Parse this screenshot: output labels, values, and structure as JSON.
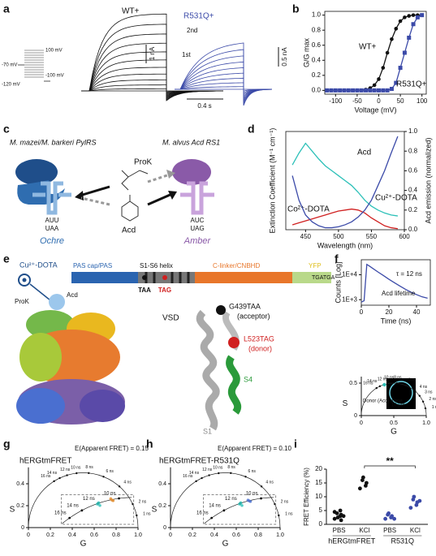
{
  "panels": [
    "a",
    "b",
    "c",
    "d",
    "e",
    "f",
    "g",
    "h",
    "i"
  ],
  "panel_a": {
    "wt_label": "WT+",
    "mut_label": "R531Q+",
    "second": "2nd",
    "first": "1st",
    "scale_wt": "1 nA",
    "scale_mut": "0.5 nA",
    "scale_time": "0.4 s",
    "protocol": [
      "100 mV",
      "-70 mV",
      "-100 mV",
      "-120 mV"
    ]
  },
  "panel_c": {
    "pylrs": "M. mazei/M. barkeri PylRS",
    "acdrs": "M. alvus Acd RS1",
    "prok": "ProK",
    "acd": "Acd",
    "left_anticodon": "AUU",
    "left_codon": "UAA",
    "right_anticodon": "AUC",
    "right_codon": "UAG",
    "left_name": "Ochre",
    "right_name": "Amber"
  },
  "panel_e": {
    "cu": "Cu²⁺-DOTA",
    "prok": "ProK",
    "acd": "Acd",
    "domains": [
      "PAS cap/PAS",
      "S1-S6 helix",
      "C-linker/CNBHD",
      "YFP"
    ],
    "codons": [
      "TAA",
      "TAG",
      "TGATGA"
    ],
    "vsd": "VSD",
    "acceptor": [
      "G439TAA",
      "(acceptor)"
    ],
    "donor": [
      "L523TAG",
      "(donor)"
    ],
    "s4": "S4",
    "s1": "S1"
  },
  "chart_data": [
    {
      "type": "line",
      "xlabel": "Voltage (mV)",
      "ylabel": "G/G max",
      "xlim": [
        -125,
        110
      ],
      "xticks": [
        -100,
        -50,
        0,
        50,
        100
      ],
      "ylim": [
        -0.05,
        1.05
      ],
      "yticks": [
        {
          "value": 0,
          "label": "0.0"
        },
        {
          "value": 0.2,
          "label": "0.2"
        },
        {
          "value": 0.4,
          "label": "0.4"
        },
        {
          "value": 0.6,
          "label": "0.6"
        },
        {
          "value": 0.8,
          "label": "0.8"
        },
        {
          "value": 1,
          "label": "1.0"
        }
      ],
      "x": [
        -120,
        -110,
        -100,
        -90,
        -80,
        -70,
        -60,
        -50,
        -40,
        -30,
        -20,
        -10,
        0,
        10,
        20,
        30,
        40,
        50,
        60,
        70,
        80,
        90,
        100
      ],
      "series": [
        {
          "name": "WT+",
          "color": "#111111",
          "marker": "circle",
          "values": [
            0,
            0,
            0,
            0,
            0,
            0,
            0,
            0,
            0,
            0.01,
            0.03,
            0.07,
            0.15,
            0.3,
            0.5,
            0.68,
            0.82,
            0.92,
            0.97,
            0.99,
            1,
            1,
            1
          ]
        },
        {
          "name": "R531Q+",
          "color": "#3b4aa8",
          "marker": "square",
          "values": [
            0,
            0,
            0,
            0,
            0,
            0,
            0,
            0,
            0,
            0,
            0,
            0,
            0,
            0,
            0,
            0.02,
            0.1,
            0.3,
            0.5,
            0.7,
            0.88,
            0.97,
            1
          ]
        }
      ]
    },
    {
      "type": "line",
      "xlabel": "Wavelength (nm)",
      "ylabel": "Extinction Coefficient (M⁻¹ cm⁻¹)",
      "y2label": "Acd emission (normalized)",
      "xlim": [
        420,
        600
      ],
      "xticks": [
        450,
        500,
        550,
        600
      ],
      "y2lim": [
        0,
        1
      ],
      "y2ticks": [
        {
          "value": 0,
          "label": "0.0"
        },
        {
          "value": 0.2,
          "label": "0.2"
        },
        {
          "value": 0.4,
          "label": "0.4"
        },
        {
          "value": 0.6,
          "label": "0.6"
        },
        {
          "value": 0.8,
          "label": "0.8"
        },
        {
          "value": 1,
          "label": "1.0"
        }
      ],
      "x": [
        430,
        440,
        450,
        460,
        470,
        480,
        490,
        500,
        510,
        520,
        530,
        540,
        550,
        560,
        570,
        580,
        590
      ],
      "series": [
        {
          "name": "Acd",
          "color": "#2cc0b8",
          "axis": "y2",
          "values": [
            0.66,
            0.78,
            0.88,
            0.8,
            0.72,
            0.65,
            0.6,
            0.55,
            0.5,
            0.45,
            0.38,
            0.3,
            0.24,
            0.2,
            0.17,
            0.15,
            0.14
          ]
        },
        {
          "name": "Co²⁺-DOTA",
          "color": "#d02020",
          "axis": "y2",
          "values": [
            0.05,
            0.07,
            0.09,
            0.11,
            0.13,
            0.15,
            0.17,
            0.19,
            0.2,
            0.21,
            0.2,
            0.17,
            0.12,
            0.08,
            0.04,
            0.02,
            0.01
          ]
        },
        {
          "name": "Cu²⁺-DOTA",
          "color": "#3b4aa8",
          "axis": "y2",
          "values": [
            0.55,
            0.3,
            0.15,
            0.08,
            0.04,
            0.02,
            0.02,
            0.03,
            0.05,
            0.08,
            0.13,
            0.2,
            0.3,
            0.45,
            0.6,
            0.78,
            0.95
          ]
        }
      ]
    },
    {
      "type": "line",
      "log_y": true,
      "xlabel": "Time (ns)",
      "ylabel": "Counts [Log]",
      "xlim": [
        0,
        50
      ],
      "xticks": [
        0,
        20,
        40
      ],
      "ylim": [
        600,
        40000
      ],
      "yticks": [
        {
          "value": 1000,
          "label": "1E+3"
        },
        {
          "value": 10000,
          "label": "1E+4"
        }
      ],
      "annotations": [
        "τ = 12 ns",
        "Acd lifetime"
      ],
      "x": [
        0,
        2,
        4,
        6,
        8,
        12,
        16,
        20,
        24,
        28,
        32,
        36,
        40,
        44,
        48
      ],
      "series": [
        {
          "color": "#3b4aa8",
          "values": [
            800,
            900,
            26000,
            22000,
            18500,
            13000,
            9300,
            6600,
            4800,
            3500,
            2600,
            2000,
            1600,
            1300,
            1150
          ]
        }
      ]
    },
    {
      "type": "phasor",
      "xlabel": "G",
      "ylabel": "S",
      "xlim": [
        0,
        1
      ],
      "xticks": [
        0,
        0.5,
        {
          "value": 1,
          "label": "1.0"
        }
      ],
      "ylim": [
        0,
        0.6
      ],
      "yticks": [
        0,
        0.5
      ],
      "lifetimes": [
        {
          "value": 1,
          "label": "1 ns"
        },
        {
          "value": 2,
          "label": "2 ns"
        },
        {
          "value": 3,
          "label": "3 ns"
        },
        {
          "value": 4,
          "label": "4 ns"
        },
        {
          "value": 6,
          "label": "6 ns"
        },
        {
          "value": 8,
          "label": "8 ns"
        },
        {
          "value": 10,
          "label": "10 ns"
        },
        {
          "value": 12,
          "label": "12 ns"
        },
        {
          "value": 14,
          "label": "14 ns"
        },
        {
          "value": 16,
          "label": "16 ns"
        }
      ],
      "annotations": [
        "Donor (Acd) alone",
        "10 μm"
      ],
      "series": [
        {
          "color": "#2cc0b8",
          "x": [
            0.35,
            0.355,
            0.36
          ],
          "values": [
            0.475,
            0.48,
            0.47
          ]
        }
      ]
    },
    {
      "type": "phasor",
      "title": "hERGtmFRET",
      "subtitle": "E(Apparent FRET) = 0.15",
      "xlabel": "G",
      "ylabel": "S",
      "xlim": [
        0,
        1
      ],
      "xticks": [
        0,
        0.2,
        0.4,
        0.6,
        0.8,
        {
          "value": 1,
          "label": "1.0"
        }
      ],
      "ylim": [
        0,
        0.55
      ],
      "yticks": [
        0,
        0.2,
        0.4
      ],
      "lifetimes": [
        {
          "value": 1,
          "label": "1 ns"
        },
        {
          "value": 2,
          "label": "2 ns"
        },
        {
          "value": 4,
          "label": "4 ns"
        },
        {
          "value": 6,
          "label": "6 ns"
        },
        {
          "value": 8,
          "label": "8 ns"
        },
        {
          "value": 10,
          "label": "10 ns"
        },
        {
          "value": 12,
          "label": "12 ns"
        },
        {
          "value": 14,
          "label": "14 ns"
        },
        {
          "value": 16,
          "label": "16 ns"
        }
      ],
      "inset_lifetimes": [
        {
          "value": 10,
          "label": "10 ns"
        },
        {
          "value": 12,
          "label": "12 ns"
        },
        {
          "value": 14,
          "label": "14 ns"
        },
        {
          "value": 16,
          "label": "16 ns"
        }
      ],
      "series": [
        {
          "color": "#2cc0b8",
          "x": [
            0.35,
            0.355,
            0.36
          ],
          "values": [
            0.475,
            0.48,
            0.47
          ]
        },
        {
          "color": "#e08a2a",
          "x": [
            0.41,
            0.415,
            0.405
          ],
          "values": [
            0.49,
            0.488,
            0.495
          ]
        }
      ]
    },
    {
      "type": "phasor",
      "title": "hERGtmFRET-R531Q",
      "subtitle": "E(Apparent FRET) = 0.10",
      "xlabel": "G",
      "ylabel": "S",
      "xlim": [
        0,
        1
      ],
      "xticks": [
        0,
        0.2,
        0.4,
        0.6,
        0.8,
        {
          "value": 1,
          "label": "1.0"
        }
      ],
      "ylim": [
        0,
        0.55
      ],
      "yticks": [
        0,
        0.2,
        0.4
      ],
      "lifetimes": [
        {
          "value": 1,
          "label": "1 ns"
        },
        {
          "value": 2,
          "label": "2 ns"
        },
        {
          "value": 4,
          "label": "4 ns"
        },
        {
          "value": 6,
          "label": "6 ns"
        },
        {
          "value": 8,
          "label": "8 ns"
        },
        {
          "value": 10,
          "label": "10 ns"
        },
        {
          "value": 12,
          "label": "12 ns"
        },
        {
          "value": 14,
          "label": "14 ns"
        },
        {
          "value": 16,
          "label": "16 ns"
        }
      ],
      "inset_lifetimes": [
        {
          "value": 10,
          "label": "10 ns"
        },
        {
          "value": 12,
          "label": "12 ns"
        },
        {
          "value": 14,
          "label": "14 ns"
        },
        {
          "value": 16,
          "label": "16 ns"
        }
      ],
      "series": [
        {
          "color": "#2cc0b8",
          "x": [
            0.35,
            0.355,
            0.36
          ],
          "values": [
            0.475,
            0.48,
            0.47
          ]
        },
        {
          "color": "#4a6fd0",
          "x": [
            0.39,
            0.395,
            0.385
          ],
          "values": [
            0.487,
            0.485,
            0.49
          ]
        }
      ]
    },
    {
      "type": "dot",
      "ylabel": "FRET Efficiency (%)",
      "ylim": [
        0,
        20
      ],
      "yticks": [
        0,
        5,
        10,
        15,
        20
      ],
      "categories": [
        "PBS",
        "KCl",
        "PBS",
        "KCl"
      ],
      "groups": [
        "hERGtmFRET",
        "R531Q"
      ],
      "annotations": [
        "**"
      ],
      "colors": [
        "#111111",
        "#111111",
        "#3b4aa8",
        "#3b4aa8"
      ],
      "points": [
        [
          2,
          3,
          3.5,
          4,
          2.5,
          3,
          4.5,
          5,
          1.5
        ],
        [
          13,
          14,
          15,
          16,
          17
        ],
        [
          2,
          2.5,
          3,
          3.5,
          4,
          2
        ],
        [
          6,
          7,
          8,
          9,
          10,
          8.5
        ]
      ]
    }
  ]
}
